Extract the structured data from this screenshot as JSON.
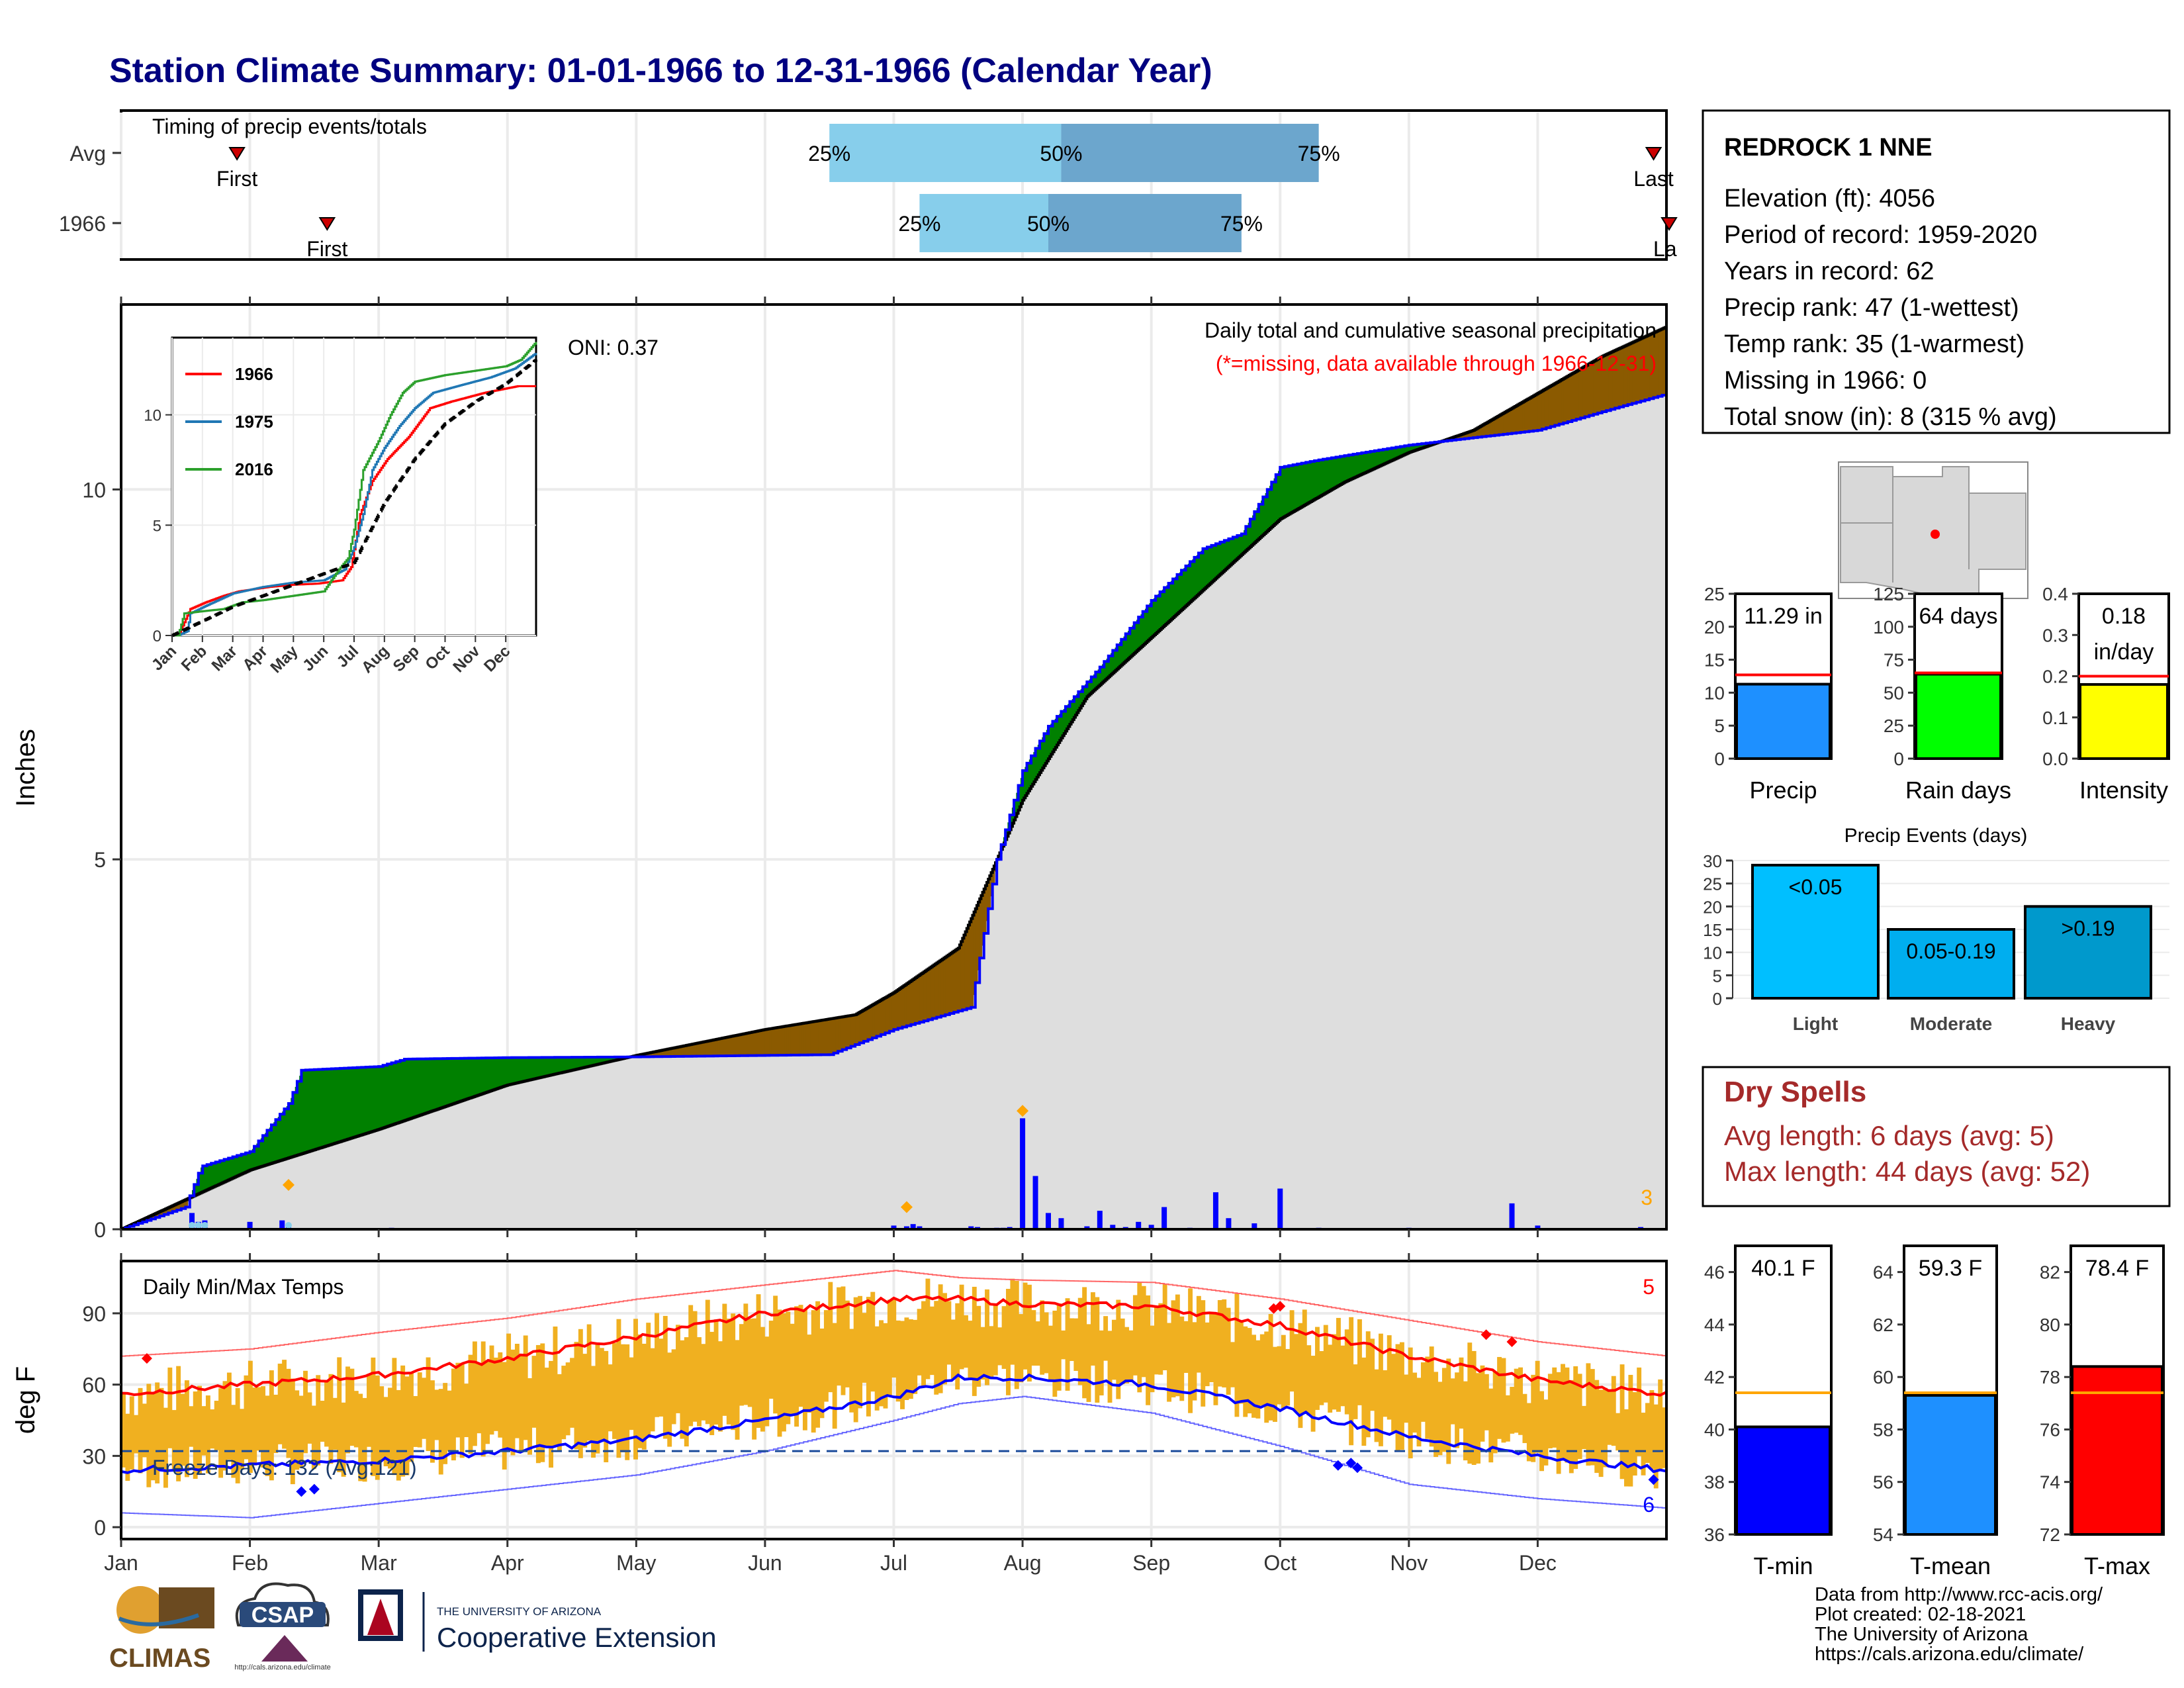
{
  "header": {
    "title": "Station Climate Summary: 01-01-1966 to 12-31-1966 (Calendar Year)"
  },
  "timing": {
    "label": "Timing of precip events/totals",
    "rows": [
      {
        "name": "Avg",
        "first_label": "First",
        "last_label": "Last",
        "first_month": 0.9,
        "last_month": 11.9,
        "q25": 5.5,
        "q50": 7.3,
        "q75": 9.3
      },
      {
        "name": "1966",
        "first_label": "First",
        "last_label": "La",
        "first_month": 1.6,
        "last_month": 12.0,
        "q25": 6.2,
        "q50": 7.2,
        "q75": 8.7
      }
    ],
    "q_labels": [
      "25%",
      "50%",
      "75%"
    ]
  },
  "precip_panel": {
    "ylabel": "Inches",
    "title_line1": "Daily total and cumulative seasonal precipitation",
    "title_line2": "(*=missing, data available through 1966-12-31)",
    "oni": "ONI: 0.37",
    "corner_count": "3",
    "yticks": [
      "0",
      "5",
      "10"
    ]
  },
  "temp_panel": {
    "ylabel": "deg F",
    "title": "Daily Min/Max Temps",
    "freeze_text": "Freeze Days: 132 (Avg:121)",
    "corner_count": "5",
    "corner_count_low": "6",
    "yticks": [
      "0",
      "30",
      "60",
      "90"
    ],
    "freeze_line": 32
  },
  "months": [
    "Jan",
    "Feb",
    "Mar",
    "Apr",
    "May",
    "Jun",
    "Jul",
    "Aug",
    "Sep",
    "Oct",
    "Nov",
    "Dec"
  ],
  "inset": {
    "legend": [
      "1966",
      "1975",
      "2016"
    ],
    "yticks": [
      "0",
      "5",
      "10"
    ],
    "months": [
      "Jan",
      "Feb",
      "Mar",
      "Apr",
      "May",
      "Jun",
      "Jul",
      "Aug",
      "Sep",
      "Oct",
      "Nov",
      "Dec"
    ]
  },
  "station": {
    "name": "REDROCK 1 NNE",
    "lines": [
      "Elevation (ft): 4056",
      "Period of record: 1959-2020",
      "Years in record: 62",
      "Precip rank: 47 (1-wettest)",
      "Temp rank: 35 (1-warmest)",
      "Missing in 1966: 0",
      "Total snow (in): 8 (315 % avg)"
    ]
  },
  "mini_bars": {
    "precip": {
      "label": "Precip",
      "value_text": "11.29 in",
      "value": 11.29,
      "avg": 12.7,
      "ymax": 25,
      "ticks": [
        "0",
        "5",
        "10",
        "15",
        "20",
        "25"
      ],
      "color": "#1E90FF"
    },
    "rain_days": {
      "label": "Rain days",
      "value_text": "64 days",
      "value": 64,
      "avg": 65,
      "ymax": 125,
      "ticks": [
        "0",
        "25",
        "50",
        "75",
        "100",
        "125"
      ],
      "color": "#00FF00"
    },
    "intensity": {
      "label": "Intensity",
      "value_text_1": "0.18",
      "value_text_2": "in/day",
      "value": 0.18,
      "avg": 0.2,
      "ymax": 0.4,
      "ticks": [
        "0.0",
        "0.1",
        "0.2",
        "0.3",
        "0.4"
      ],
      "color": "#FFFF00"
    }
  },
  "precip_events": {
    "title": "Precip Events (days)",
    "ticks": [
      "0",
      "5",
      "10",
      "15",
      "20",
      "25",
      "30"
    ],
    "bars": [
      {
        "category": "Light",
        "label": "<0.05",
        "value": 29,
        "color": "#00BFFF"
      },
      {
        "category": "Moderate",
        "label": "0.05-0.19",
        "value": 15,
        "color": "#00AEEF"
      },
      {
        "category": "Heavy",
        "label": ">0.19",
        "value": 20,
        "color": "#0099CC"
      }
    ]
  },
  "dry_spells": {
    "title": "Dry Spells",
    "avg_line": "Avg length: 6 days (avg: 5)",
    "max_line": "Max length: 44 days (avg: 52)"
  },
  "temp_bars": {
    "tmin": {
      "label": "T-min",
      "value_text": "40.1 F",
      "value": 40.1,
      "avg": 41.4,
      "ymin": 36,
      "ymax": 47,
      "ticks": [
        "36",
        "38",
        "40",
        "42",
        "44",
        "46"
      ],
      "color": "#0000FF"
    },
    "tmean": {
      "label": "T-mean",
      "value_text": "59.3 F",
      "value": 59.3,
      "avg": 59.4,
      "ymin": 54,
      "ymax": 65,
      "ticks": [
        "54",
        "56",
        "58",
        "60",
        "62",
        "64"
      ],
      "color": "#1E90FF"
    },
    "tmax": {
      "label": "T-max",
      "value_text": "78.4 F",
      "value": 78.4,
      "avg": 77.4,
      "ymin": 72,
      "ymax": 83,
      "ticks": [
        "72",
        "74",
        "76",
        "78",
        "80",
        "82"
      ],
      "color": "#FF0000"
    }
  },
  "footer": {
    "lines": [
      "Data from http://www.rcc-acis.org/",
      "Plot created: 02-18-2021",
      "The University of Arizona",
      "https://cals.arizona.edu/climate/"
    ],
    "logo_climas": "CLIMAS",
    "logo_csap": "CSAP",
    "logo_csap_url": "http://cals.arizona.edu/climate",
    "ua_small": "THE UNIVERSITY OF ARIZONA",
    "ua_big": "Cooperative Extension"
  },
  "chart_data": [
    {
      "type": "area",
      "title": "Daily total and cumulative seasonal precipitation",
      "ylabel": "Inches",
      "ylim": [
        0,
        12.5
      ],
      "x_unit": "month (0 = Jan 1, 12 = Dec 31)",
      "series": [
        {
          "name": "1966",
          "points": [
            [
              0,
              0
            ],
            [
              0.5,
              0.3
            ],
            [
              0.62,
              0.85
            ],
            [
              1.0,
              1.05
            ],
            [
              1.3,
              1.7
            ],
            [
              1.4,
              2.15
            ],
            [
              2.0,
              2.2
            ],
            [
              2.2,
              2.3
            ],
            [
              3.0,
              2.32
            ],
            [
              4.0,
              2.33
            ],
            [
              5.0,
              2.35
            ],
            [
              5.5,
              2.36
            ],
            [
              6.0,
              2.7
            ],
            [
              6.6,
              3.0
            ],
            [
              6.8,
              5.0
            ],
            [
              7.0,
              6.2
            ],
            [
              7.2,
              6.8
            ],
            [
              7.6,
              7.6
            ],
            [
              8.0,
              8.5
            ],
            [
              8.4,
              9.2
            ],
            [
              8.7,
              9.4
            ],
            [
              9.0,
              10.3
            ],
            [
              9.3,
              10.4
            ],
            [
              10.0,
              10.6
            ],
            [
              11.0,
              10.8
            ],
            [
              11.6,
              11.1
            ],
            [
              12.0,
              11.29
            ]
          ]
        },
        {
          "name": "Avg",
          "points": [
            [
              0,
              0
            ],
            [
              1,
              0.8
            ],
            [
              2,
              1.35
            ],
            [
              3,
              1.95
            ],
            [
              4,
              2.35
            ],
            [
              5,
              2.7
            ],
            [
              5.7,
              2.9
            ],
            [
              6,
              3.2
            ],
            [
              6.5,
              3.8
            ],
            [
              7,
              5.8
            ],
            [
              7.5,
              7.2
            ],
            [
              8,
              8.0
            ],
            [
              8.5,
              8.8
            ],
            [
              9,
              9.6
            ],
            [
              9.5,
              10.1
            ],
            [
              10,
              10.5
            ],
            [
              10.5,
              10.8
            ],
            [
              11,
              11.3
            ],
            [
              11.5,
              11.8
            ],
            [
              12,
              12.2
            ]
          ]
        }
      ],
      "daily": {
        "name": "Daily total",
        "dates_month": [
          0.55,
          0.6,
          0.65,
          1.0,
          1.25,
          1.3,
          2.1,
          6.0,
          6.1,
          6.15,
          6.2,
          6.6,
          6.65,
          6.8,
          6.85,
          6.9,
          7.0,
          7.1,
          7.2,
          7.3,
          7.5,
          7.6,
          7.7,
          7.8,
          7.9,
          8.0,
          8.1,
          8.3,
          8.5,
          8.6,
          8.8,
          9.0,
          9.3,
          10.0,
          10.8,
          11.0,
          11.8
        ],
        "values": [
          0.22,
          0.1,
          0.12,
          0.1,
          0.12,
          0.06,
          0.02,
          0.05,
          0.04,
          0.07,
          0.04,
          0.04,
          0.03,
          0.02,
          0.02,
          0.03,
          1.5,
          0.72,
          0.22,
          0.15,
          0.04,
          0.25,
          0.06,
          0.03,
          0.1,
          0.06,
          0.3,
          0.02,
          0.5,
          0.15,
          0.08,
          0.55,
          0.02,
          0.02,
          0.35,
          0.05,
          0.03
        ]
      }
    },
    {
      "type": "line",
      "title": "Daily Min/Max Temps",
      "ylabel": "deg F",
      "ylim": [
        -5,
        112
      ],
      "x_unit": "month (0 = Jan 1, 12 = Dec 31)",
      "series": [
        {
          "name": "Avg max",
          "points": [
            [
              0,
              56
            ],
            [
              1,
              60
            ],
            [
              2,
              64
            ],
            [
              3,
              71
            ],
            [
              4,
              80
            ],
            [
              5,
              90
            ],
            [
              6,
              96
            ],
            [
              6.5,
              96
            ],
            [
              7,
              94
            ],
            [
              8,
              93
            ],
            [
              9,
              85
            ],
            [
              10,
              72
            ],
            [
              11,
              62
            ],
            [
              12,
              56
            ]
          ]
        },
        {
          "name": "Avg min",
          "points": [
            [
              0,
              24
            ],
            [
              1,
              26
            ],
            [
              2,
              28
            ],
            [
              3,
              32
            ],
            [
              4,
              37
            ],
            [
              5,
              45
            ],
            [
              6,
              55
            ],
            [
              6.5,
              63
            ],
            [
              7,
              63
            ],
            [
              8,
              60
            ],
            [
              9,
              50
            ],
            [
              10,
              38
            ],
            [
              11,
              30
            ],
            [
              12,
              24
            ]
          ]
        },
        {
          "name": "Record max",
          "points": [
            [
              0,
              72
            ],
            [
              1,
              75
            ],
            [
              2,
              82
            ],
            [
              3,
              88
            ],
            [
              4,
              96
            ],
            [
              5,
              102
            ],
            [
              6,
              108
            ],
            [
              6.5,
              105
            ],
            [
              7,
              104
            ],
            [
              8,
              103
            ],
            [
              9,
              96
            ],
            [
              10,
              87
            ],
            [
              11,
              78
            ],
            [
              12,
              72
            ]
          ]
        },
        {
          "name": "Record min",
          "points": [
            [
              0,
              6
            ],
            [
              1,
              4
            ],
            [
              2,
              10
            ],
            [
              3,
              16
            ],
            [
              4,
              22
            ],
            [
              5,
              32
            ],
            [
              6,
              45
            ],
            [
              6.5,
              52
            ],
            [
              7,
              55
            ],
            [
              8,
              48
            ],
            [
              9,
              34
            ],
            [
              10,
              18
            ],
            [
              11,
              12
            ],
            [
              12,
              8
            ]
          ]
        }
      ]
    },
    {
      "type": "line",
      "title": "",
      "ylim": [
        0,
        13.5
      ],
      "yticks": [
        0,
        5,
        10
      ],
      "x_unit": "month (0 = Jan 1, 12 = Dec 31)",
      "series": [
        {
          "name": "1966",
          "points": [
            [
              0.2,
              0
            ],
            [
              0.6,
              1.2
            ],
            [
              1.1,
              1.5
            ],
            [
              1.7,
              1.8
            ],
            [
              2.2,
              2.0
            ],
            [
              3.2,
              2.2
            ],
            [
              4.0,
              2.3
            ],
            [
              4.8,
              2.35
            ],
            [
              5.6,
              2.5
            ],
            [
              5.9,
              3.1
            ],
            [
              6.2,
              5.5
            ],
            [
              6.6,
              7.0
            ],
            [
              7.1,
              8.0
            ],
            [
              7.8,
              9.0
            ],
            [
              8.5,
              10.3
            ],
            [
              9.2,
              10.6
            ],
            [
              10.3,
              11.0
            ],
            [
              11.4,
              11.3
            ],
            [
              12,
              11.3
            ]
          ]
        },
        {
          "name": "1975",
          "points": [
            [
              0.2,
              0
            ],
            [
              0.5,
              0.2
            ],
            [
              0.6,
              1.0
            ],
            [
              1.2,
              1.4
            ],
            [
              2.0,
              1.9
            ],
            [
              3.0,
              2.2
            ],
            [
              4.0,
              2.4
            ],
            [
              5.0,
              2.5
            ],
            [
              5.7,
              3.0
            ],
            [
              6.0,
              4.0
            ],
            [
              6.3,
              5.5
            ],
            [
              6.6,
              7.5
            ],
            [
              7.0,
              8.5
            ],
            [
              7.5,
              9.5
            ],
            [
              8.0,
              10.3
            ],
            [
              8.6,
              11.0
            ],
            [
              9.4,
              11.3
            ],
            [
              10.5,
              11.7
            ],
            [
              11.3,
              12.1
            ],
            [
              12,
              12.8
            ]
          ]
        },
        {
          "name": "2016",
          "points": [
            [
              0.2,
              0
            ],
            [
              0.4,
              1.0
            ],
            [
              1.0,
              1.1
            ],
            [
              1.7,
              1.2
            ],
            [
              2.3,
              1.5
            ],
            [
              3.0,
              1.6
            ],
            [
              4.0,
              1.8
            ],
            [
              5.0,
              2.0
            ],
            [
              5.5,
              3.0
            ],
            [
              5.8,
              3.5
            ],
            [
              6.0,
              4.8
            ],
            [
              6.3,
              7.5
            ],
            [
              6.8,
              8.8
            ],
            [
              7.2,
              10.0
            ],
            [
              7.6,
              11.0
            ],
            [
              8.0,
              11.5
            ],
            [
              9.0,
              11.8
            ],
            [
              10.0,
              12.0
            ],
            [
              11.0,
              12.2
            ],
            [
              11.5,
              12.5
            ],
            [
              12,
              13.3
            ]
          ]
        },
        {
          "name": "Avg",
          "points": [
            [
              0,
              0
            ],
            [
              2,
              1.3
            ],
            [
              4,
              2.3
            ],
            [
              6,
              3.3
            ],
            [
              7,
              6.0
            ],
            [
              8,
              8.0
            ],
            [
              9,
              9.6
            ],
            [
              10,
              10.6
            ],
            [
              11,
              11.4
            ],
            [
              12,
              12.5
            ]
          ]
        }
      ]
    },
    {
      "type": "bar",
      "title": "Precip Events (days)",
      "categories": [
        "Light",
        "Moderate",
        "Heavy"
      ],
      "values": [
        29,
        15,
        20
      ],
      "ylim": [
        0,
        30
      ]
    },
    {
      "type": "bar",
      "categories": [
        "Precip",
        "Rain days",
        "Intensity",
        "T-min",
        "T-mean",
        "T-max"
      ],
      "values": [
        11.29,
        64,
        0.18,
        40.1,
        59.3,
        78.4
      ]
    }
  ]
}
